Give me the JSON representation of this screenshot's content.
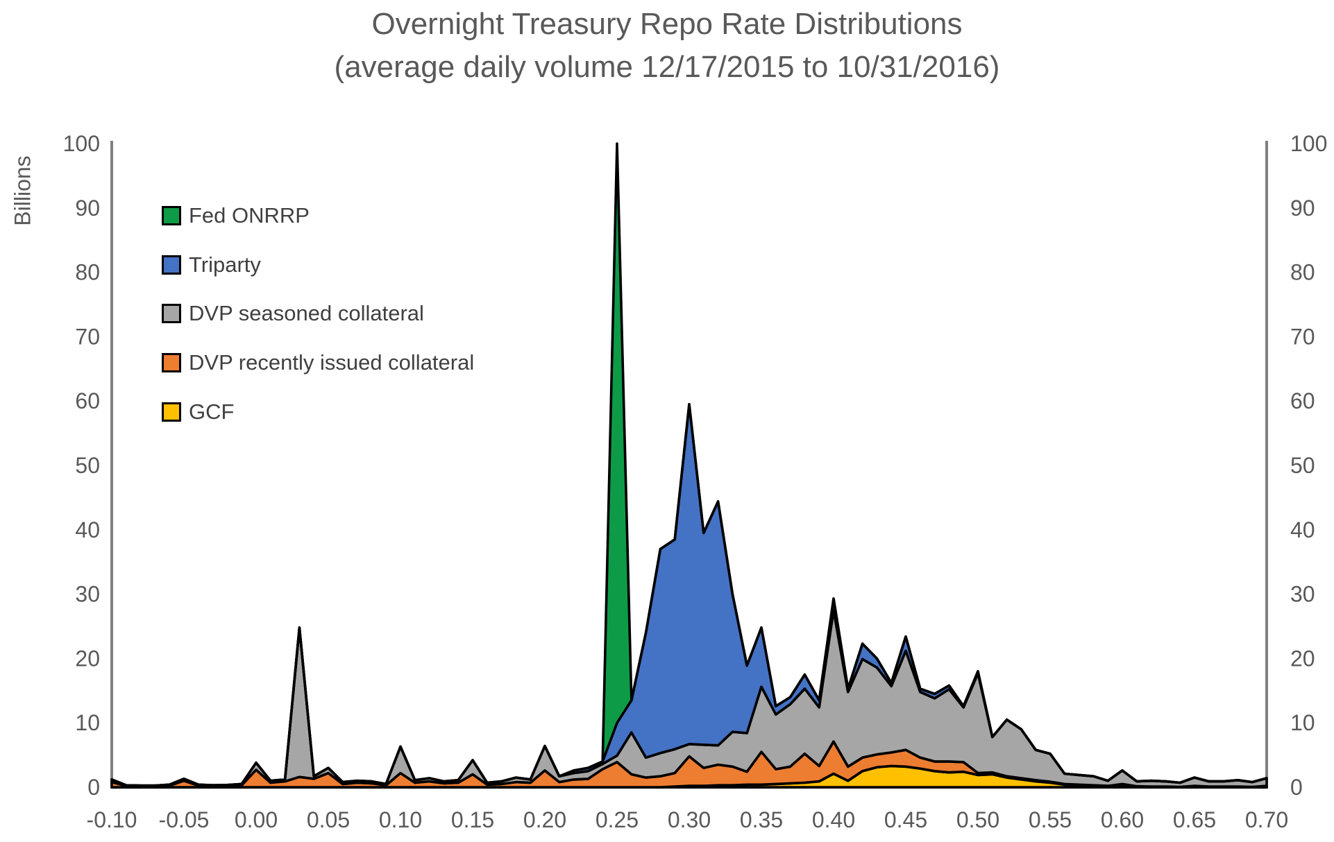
{
  "title": {
    "line1": "Overnight Treasury Repo Rate Distributions",
    "line2": "(average daily volume 12/17/2015 to 10/31/2016)"
  },
  "y_axis": {
    "label": "Billions",
    "tick_labels": [
      "0",
      "10",
      "20",
      "30",
      "40",
      "50",
      "60",
      "70",
      "80",
      "90",
      "100"
    ],
    "min": 0,
    "max": 100
  },
  "x_axis": {
    "tick_labels": [
      "-0.10",
      "-0.05",
      "0.00",
      "0.05",
      "0.10",
      "0.15",
      "0.20",
      "0.25",
      "0.30",
      "0.35",
      "0.40",
      "0.45",
      "0.50",
      "0.55",
      "0.60",
      "0.65",
      "0.70"
    ]
  },
  "legend": [
    {
      "label": "Fed ONRRP",
      "color": "#0E9B48"
    },
    {
      "label": "Triparty",
      "color": "#4472C4"
    },
    {
      "label": "DVP seasoned collateral",
      "color": "#A6A6A6"
    },
    {
      "label": "DVP recently issued collateral",
      "color": "#ED7D31"
    },
    {
      "label": "GCF",
      "color": "#FFC000"
    }
  ],
  "chart_data": {
    "type": "area",
    "stacked": true,
    "title": "Overnight Treasury Repo Rate Distributions (average daily volume 12/17/2015 to 10/31/2016)",
    "xlabel": "",
    "ylabel": "Billions",
    "ylim": [
      0,
      100
    ],
    "xlim": [
      -0.1,
      0.7
    ],
    "grid": false,
    "outline_color": "#000000",
    "axis_color": "#7F7F7F",
    "tick_color": "#595959",
    "x": [
      -0.1,
      -0.09,
      -0.08,
      -0.07,
      -0.06,
      -0.05,
      -0.04,
      -0.03,
      -0.02,
      -0.01,
      0.0,
      0.01,
      0.02,
      0.03,
      0.04,
      0.05,
      0.06,
      0.07,
      0.08,
      0.09,
      0.1,
      0.11,
      0.12,
      0.13,
      0.14,
      0.15,
      0.16,
      0.17,
      0.18,
      0.19,
      0.2,
      0.21,
      0.22,
      0.23,
      0.24,
      0.25,
      0.26,
      0.27,
      0.28,
      0.29,
      0.3,
      0.31,
      0.32,
      0.33,
      0.34,
      0.35,
      0.36,
      0.37,
      0.38,
      0.39,
      0.4,
      0.41,
      0.42,
      0.43,
      0.44,
      0.45,
      0.46,
      0.47,
      0.48,
      0.49,
      0.5,
      0.51,
      0.52,
      0.53,
      0.54,
      0.55,
      0.56,
      0.57,
      0.58,
      0.59,
      0.6,
      0.61,
      0.62,
      0.63,
      0.64,
      0.65,
      0.66,
      0.67,
      0.68,
      0.69,
      0.7
    ],
    "series": [
      {
        "name": "GCF",
        "color": "#FFC000",
        "values": [
          0,
          0,
          0,
          0,
          0,
          0,
          0,
          0,
          0,
          0,
          0,
          0,
          0,
          0,
          0,
          0,
          0,
          0,
          0,
          0,
          0,
          0,
          0,
          0,
          0,
          0,
          0,
          0,
          0,
          0,
          0,
          0,
          0,
          0,
          0,
          0,
          0,
          0,
          0,
          0.1,
          0.2,
          0.2,
          0.3,
          0.3,
          0.4,
          0.4,
          0.5,
          0.6,
          0.7,
          0.9,
          2.1,
          1.0,
          2.5,
          3.1,
          3.3,
          3.2,
          2.9,
          2.5,
          2.3,
          2.4,
          1.9,
          2.0,
          1.5,
          1.2,
          0.9,
          0.7,
          0.4,
          0.2,
          0.15,
          0.1,
          0.3,
          0.05,
          0,
          0,
          0,
          0,
          0,
          0,
          0,
          0,
          0
        ]
      },
      {
        "name": "DVP recently issued collateral",
        "color": "#ED7D31",
        "values": [
          0.8,
          0.2,
          0.15,
          0.15,
          0.25,
          1.0,
          0.25,
          0.15,
          0.2,
          0.3,
          2.7,
          0.7,
          0.9,
          1.6,
          1.3,
          2.2,
          0.5,
          0.7,
          0.6,
          0.3,
          2.2,
          0.7,
          0.9,
          0.6,
          0.7,
          2.0,
          0.4,
          0.5,
          0.8,
          0.7,
          2.6,
          0.8,
          1.2,
          1.3,
          2.8,
          3.9,
          2.0,
          1.5,
          1.7,
          2.1,
          4.6,
          2.8,
          3.2,
          2.9,
          2.0,
          5.1,
          2.3,
          2.6,
          4.5,
          2.4,
          5.0,
          2.2,
          2.1,
          2.0,
          2.1,
          2.6,
          1.7,
          1.5,
          1.7,
          1.5,
          0.3,
          0.3,
          0.2,
          0.2,
          0.2,
          0.15,
          0.1,
          0.2,
          0.15,
          0.1,
          0.2,
          0.1,
          0.1,
          0.1,
          0.05,
          0.2,
          0.1,
          0.1,
          0.1,
          0.05,
          0.2
        ]
      },
      {
        "name": "DVP seasoned collateral",
        "color": "#A6A6A6",
        "values": [
          0.4,
          0.1,
          0.1,
          0.1,
          0.15,
          0.3,
          0.15,
          0.15,
          0.15,
          0.2,
          1.1,
          0.3,
          0.3,
          23.2,
          0.4,
          0.8,
          0.3,
          0.3,
          0.3,
          0.2,
          4.1,
          0.4,
          0.5,
          0.3,
          0.4,
          2.2,
          0.3,
          0.4,
          0.7,
          0.5,
          3.8,
          0.9,
          1.0,
          1.2,
          0.8,
          1.0,
          6.5,
          3.1,
          3.6,
          3.7,
          1.9,
          3.6,
          3.0,
          5.4,
          6.0,
          10.1,
          8.5,
          9.7,
          10.1,
          9.1,
          20.4,
          11.6,
          15.3,
          13.5,
          10.3,
          15.4,
          10.2,
          9.8,
          11.2,
          8.5,
          15.5,
          5.5,
          8.8,
          7.6,
          4.7,
          4.35,
          1.6,
          1.5,
          1.4,
          0.8,
          2.1,
          0.75,
          0.9,
          0.8,
          0.65,
          1.3,
          0.8,
          0.8,
          1.0,
          0.75,
          1.2
        ]
      },
      {
        "name": "Triparty",
        "color": "#4472C4",
        "values": [
          0,
          0,
          0,
          0,
          0,
          0,
          0,
          0,
          0,
          0,
          0,
          0,
          0,
          0,
          0,
          0,
          0,
          0,
          0,
          0,
          0,
          0,
          0,
          0,
          0,
          0,
          0,
          0,
          0,
          0,
          0,
          0,
          0.4,
          0.5,
          0.4,
          5.1,
          5.0,
          19.4,
          31.7,
          32.6,
          52.8,
          32.9,
          37.9,
          21.4,
          10.5,
          9.2,
          1.3,
          1.1,
          2.2,
          1.1,
          1.8,
          0.5,
          2.4,
          1.4,
          0.5,
          2.2,
          0.5,
          0.7,
          0.6,
          0.2,
          0.3,
          0,
          0,
          0,
          0,
          0,
          0,
          0,
          0,
          0,
          0,
          0,
          0,
          0,
          0,
          0,
          0,
          0,
          0,
          0,
          0
        ]
      },
      {
        "name": "Fed ONRRP",
        "color": "#0E9B48",
        "values": [
          0,
          0,
          0,
          0,
          0,
          0,
          0,
          0,
          0,
          0,
          0,
          0,
          0,
          0,
          0,
          0,
          0,
          0,
          0,
          0,
          0,
          0,
          0,
          0,
          0,
          0,
          0,
          0,
          0,
          0,
          0,
          0,
          0,
          0,
          0,
          90.0,
          0,
          0,
          0,
          0,
          0,
          0,
          0,
          0,
          0,
          0,
          0,
          0,
          0,
          0,
          0,
          0,
          0,
          0,
          0,
          0,
          0,
          0,
          0,
          0,
          0,
          0,
          0,
          0,
          0,
          0,
          0,
          0,
          0,
          0,
          0,
          0,
          0,
          0,
          0,
          0,
          0,
          0,
          0,
          0,
          0
        ]
      }
    ],
    "legend_order_top_to_bottom": [
      "Fed ONRRP",
      "Triparty",
      "DVP seasoned collateral",
      "DVP recently issued collateral",
      "GCF"
    ]
  }
}
